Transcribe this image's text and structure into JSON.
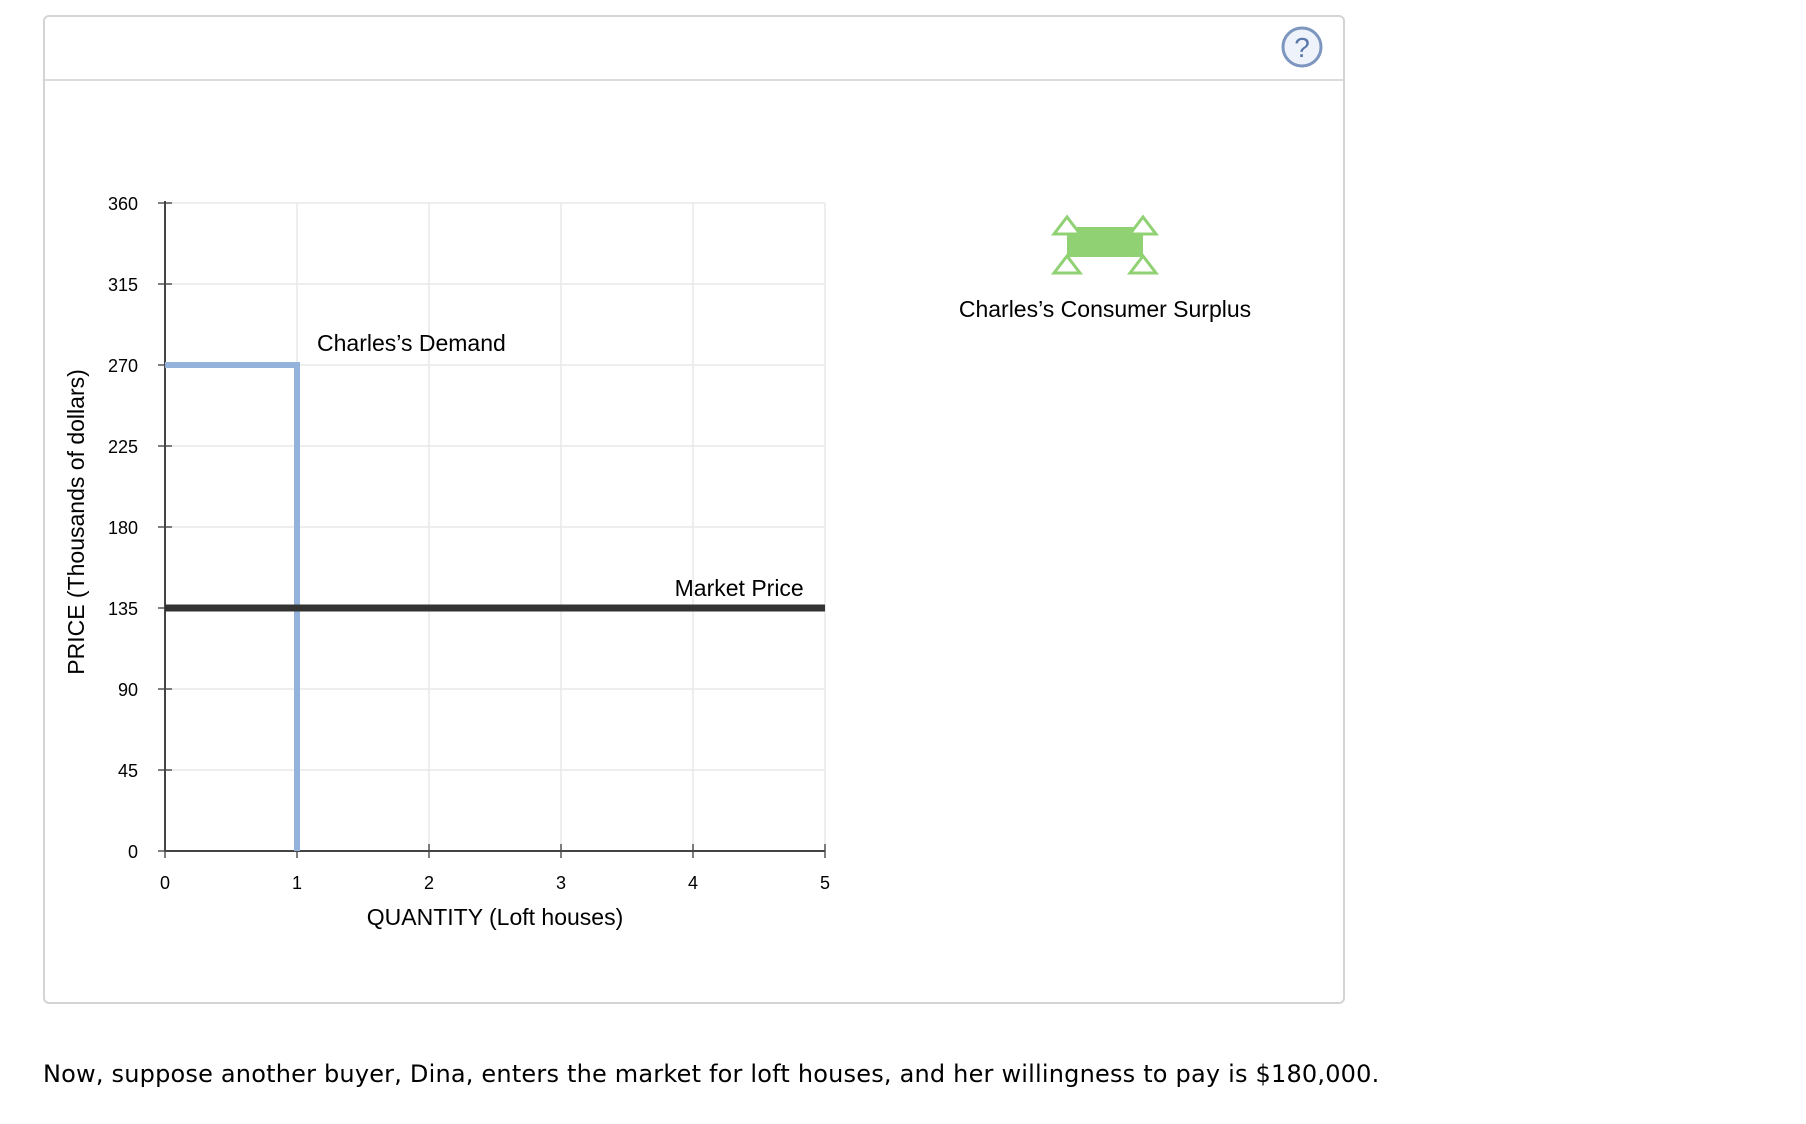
{
  "chart_data": {
    "type": "line",
    "xlabel": "QUANTITY (Loft houses)",
    "ylabel": "PRICE (Thousands of dollars)",
    "xlim": [
      0,
      5
    ],
    "ylim": [
      0,
      360
    ],
    "x_ticks": [
      "0",
      "1",
      "2",
      "3",
      "4",
      "5"
    ],
    "y_ticks": [
      "0",
      "45",
      "90",
      "135",
      "180",
      "225",
      "270",
      "315",
      "360"
    ],
    "grid": true,
    "series": [
      {
        "name": "Charles’s Demand",
        "color": "#93b3dc",
        "points": [
          [
            0,
            270
          ],
          [
            1,
            270
          ],
          [
            1,
            0
          ]
        ]
      },
      {
        "name": "Market Price",
        "color": "#333333",
        "points": [
          [
            0,
            135
          ],
          [
            5,
            135
          ]
        ]
      }
    ],
    "legend": {
      "placement": "right",
      "items": [
        {
          "label": "Charles’s Consumer Surplus",
          "color": "#8fd173",
          "icon": "area-tool-icon"
        }
      ]
    }
  },
  "help": {
    "label": "?",
    "icon": "question-circle-icon"
  },
  "caption": "Now, suppose another buyer, Dina, enters the market for loft houses, and her willingness to pay is $180,000."
}
